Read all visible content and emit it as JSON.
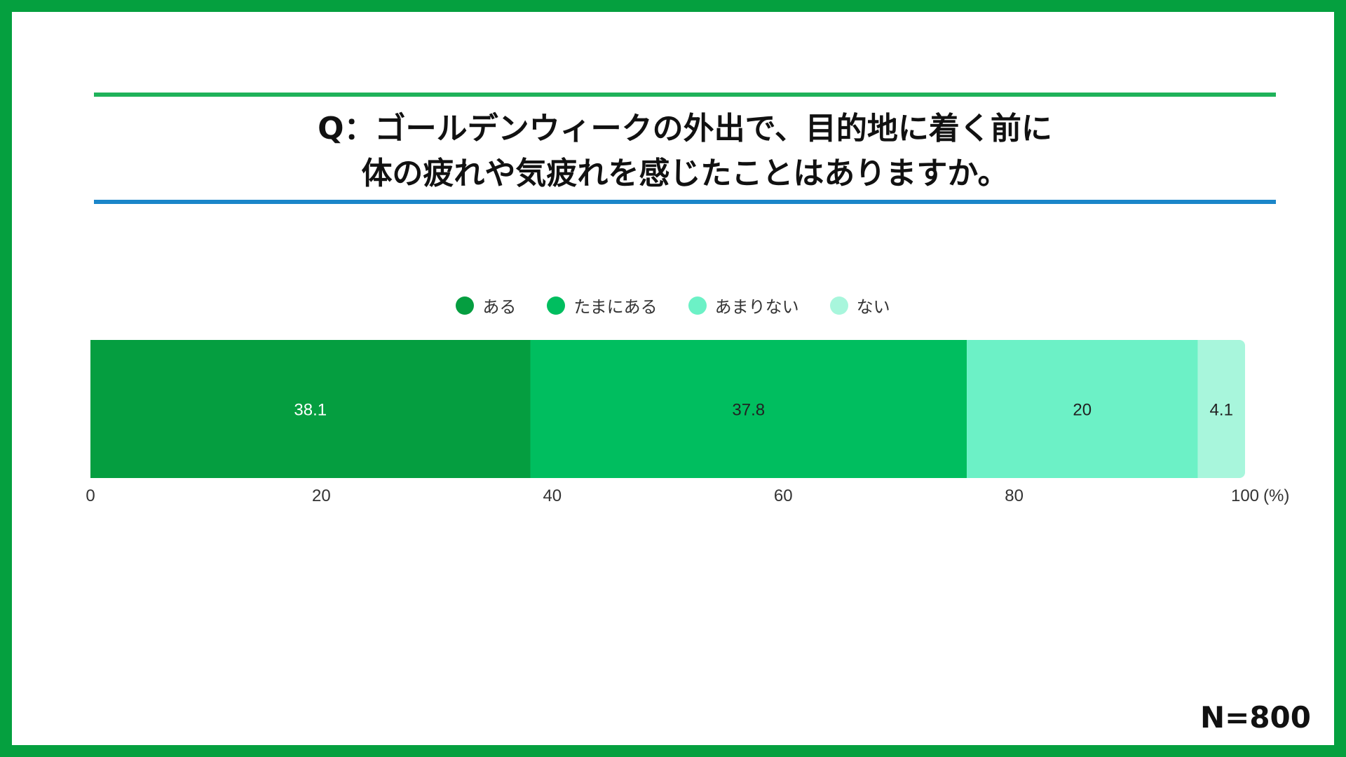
{
  "header": {
    "question_line1": "Q：ゴールデンウィークの外出で、目的地に着く前に",
    "question_line2": "体の疲れや気疲れを感じたことはありますか。"
  },
  "colors": {
    "frame": "#05a03f",
    "rule_top": "#1fb25a",
    "rule_bottom": "#1b86c9"
  },
  "sample_size": "N=800",
  "chart_data": {
    "type": "bar",
    "orientation": "horizontal",
    "stacked": true,
    "categories": [
      ""
    ],
    "series": [
      {
        "name": "ある",
        "values": [
          38.1
        ],
        "color": "#059e40",
        "label_color": "#ffffff"
      },
      {
        "name": "たまにある",
        "values": [
          37.8
        ],
        "color": "#00be5f",
        "label_color": "#222222"
      },
      {
        "name": "あまりない",
        "values": [
          20
        ],
        "color": "#6cf1c6",
        "label_color": "#222222"
      },
      {
        "name": "ない",
        "values": [
          4.1
        ],
        "color": "#a8f6dc",
        "label_color": "#222222"
      }
    ],
    "data_labels": [
      "38.1",
      "37.8",
      "20",
      "4.1"
    ],
    "xlim": [
      0,
      100
    ],
    "xticks": [
      "0",
      "20",
      "40",
      "60",
      "80",
      "100"
    ],
    "xunit": "(%)",
    "legend_position": "top-center",
    "grid": false
  }
}
